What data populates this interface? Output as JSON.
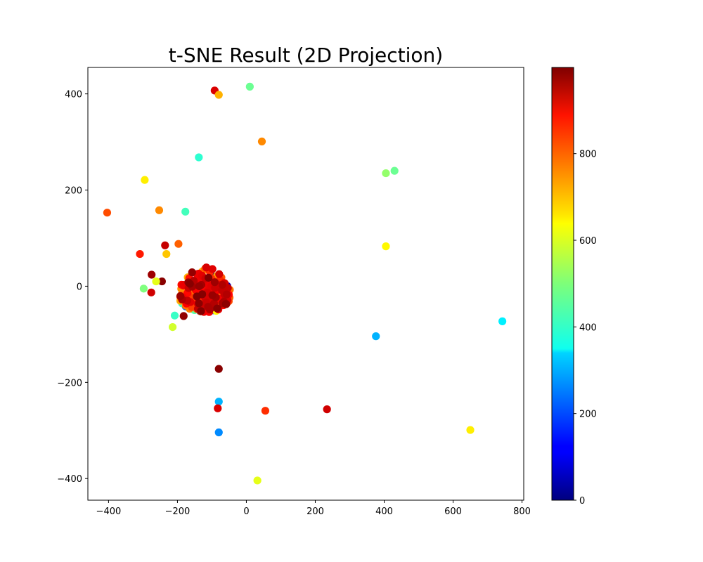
{
  "chart_data": {
    "type": "scatter",
    "title": "t-SNE Result (2D Projection)",
    "xlabel": "",
    "ylabel": "",
    "xlim": [
      -460,
      805
    ],
    "ylim": [
      -445,
      455
    ],
    "xticks": [
      -400,
      -200,
      0,
      200,
      400,
      600,
      800
    ],
    "yticks": [
      -400,
      -200,
      0,
      200,
      400
    ],
    "colormap": "jet",
    "colorbar": {
      "min": 0,
      "max": 999,
      "ticks": [
        0,
        200,
        400,
        600,
        800
      ]
    },
    "grid": false,
    "outlier_points": [
      {
        "x": -92,
        "y": 407,
        "c": 910
      },
      {
        "x": -80,
        "y": 398,
        "c": 700
      },
      {
        "x": 10,
        "y": 415,
        "c": 480
      },
      {
        "x": 45,
        "y": 301,
        "c": 740
      },
      {
        "x": -138,
        "y": 268,
        "c": 420
      },
      {
        "x": 405,
        "y": 235,
        "c": 520
      },
      {
        "x": 430,
        "y": 240,
        "c": 480
      },
      {
        "x": -295,
        "y": 221,
        "c": 640
      },
      {
        "x": -404,
        "y": 153,
        "c": 800
      },
      {
        "x": -253,
        "y": 158,
        "c": 740
      },
      {
        "x": -177,
        "y": 155,
        "c": 440
      },
      {
        "x": -197,
        "y": 88,
        "c": 780
      },
      {
        "x": -236,
        "y": 85,
        "c": 930
      },
      {
        "x": -309,
        "y": 67,
        "c": 850
      },
      {
        "x": -232,
        "y": 67,
        "c": 680
      },
      {
        "x": 405,
        "y": 83,
        "c": 630
      },
      {
        "x": -275,
        "y": 24,
        "c": 970
      },
      {
        "x": -245,
        "y": 10,
        "c": 990
      },
      {
        "x": -262,
        "y": 10,
        "c": 600
      },
      {
        "x": -298,
        "y": -5,
        "c": 500
      },
      {
        "x": -276,
        "y": -13,
        "c": 920
      },
      {
        "x": -208,
        "y": -61,
        "c": 430
      },
      {
        "x": -182,
        "y": -62,
        "c": 980
      },
      {
        "x": -214,
        "y": -85,
        "c": 580
      },
      {
        "x": -80,
        "y": -172,
        "c": 990
      },
      {
        "x": 376,
        "y": -104,
        "c": 300
      },
      {
        "x": 743,
        "y": -73,
        "c": 360
      },
      {
        "x": -80,
        "y": -240,
        "c": 300
      },
      {
        "x": -83,
        "y": -254,
        "c": 910
      },
      {
        "x": 55,
        "y": -259,
        "c": 830
      },
      {
        "x": 234,
        "y": -256,
        "c": 920
      },
      {
        "x": -80,
        "y": -304,
        "c": 260
      },
      {
        "x": 650,
        "y": -299,
        "c": 640
      },
      {
        "x": 32,
        "y": -404,
        "c": 600
      }
    ],
    "cluster": {
      "note": "dense cluster of overlapping points",
      "x_range": [
        -195,
        -45
      ],
      "y_range": [
        -55,
        40
      ],
      "point_count_estimate": 220
    }
  }
}
